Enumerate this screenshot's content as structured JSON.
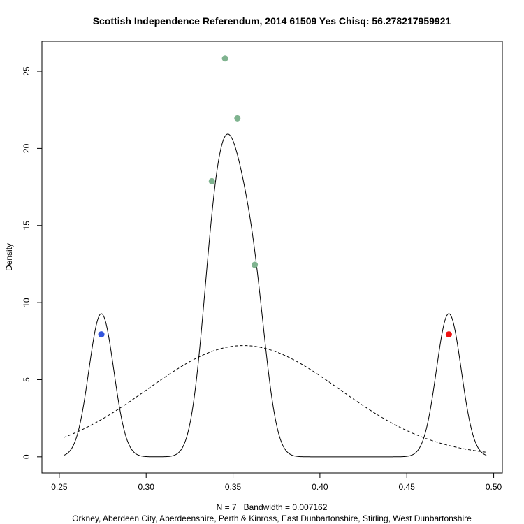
{
  "chart_data": {
    "type": "line",
    "title": "Scottish Independence Referendum, 2014 61509 Yes Chisq: 56.278217959921",
    "xlabel": "N = 7   Bandwidth = 0.007162",
    "sublabel": "Orkney, Aberdeen City, Aberdeenshire, Perth & Kinross, East Dunbartonshire, Stirling, West Dunbartonshire",
    "ylabel": "Density",
    "xlim": [
      0.24,
      0.505
    ],
    "ylim": [
      -1.05,
      26.95
    ],
    "x_ticks": [
      0.25,
      0.3,
      0.35,
      0.4,
      0.45,
      0.5
    ],
    "x_tick_labels": [
      "0.25",
      "0.30",
      "0.35",
      "0.40",
      "0.45",
      "0.50"
    ],
    "y_ticks": [
      0,
      5,
      10,
      15,
      20,
      25
    ],
    "y_tick_labels": [
      "0",
      "5",
      "10",
      "15",
      "20",
      "25"
    ],
    "bandwidth": 0.007162,
    "n": 7,
    "kde_range": [
      0.2526,
      0.4958
    ],
    "normal_curve": {
      "mean": 0.356,
      "sd": 0.0553
    },
    "points": [
      {
        "x": 0.2742,
        "y": 7.94,
        "color": "#3355dd"
      },
      {
        "x": 0.3378,
        "y": 17.87,
        "color": "#7fb38f"
      },
      {
        "x": 0.3454,
        "y": 25.83,
        "color": "#7fb38f"
      },
      {
        "x": 0.3525,
        "y": 21.95,
        "color": "#7fb38f"
      },
      {
        "x": 0.3625,
        "y": 12.45,
        "color": "#7fb38f"
      },
      {
        "x": 0.4742,
        "y": 7.94,
        "color": "#ee1111"
      }
    ]
  }
}
